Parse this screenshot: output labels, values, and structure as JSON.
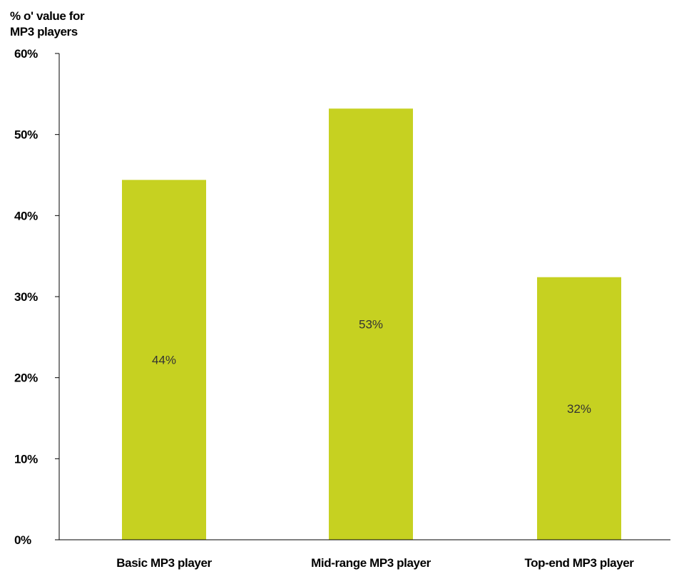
{
  "chart_data": {
    "type": "bar",
    "ylabel_lines": [
      "% o' value for",
      "MP3 players"
    ],
    "xlabel": "",
    "categories": [
      "Basic MP3 player",
      "Mid-range MP3 player",
      "Top-end MP3 player"
    ],
    "values": [
      44.4,
      53.2,
      32.4
    ],
    "data_labels": [
      "44%",
      "53%",
      "32%"
    ],
    "yticks": [
      "0%",
      "10%",
      "20%",
      "30%",
      "40%",
      "50%",
      "60%"
    ],
    "ylim": [
      0,
      60
    ],
    "bar_color": "#c6d121",
    "grid": false,
    "legend": "none"
  }
}
